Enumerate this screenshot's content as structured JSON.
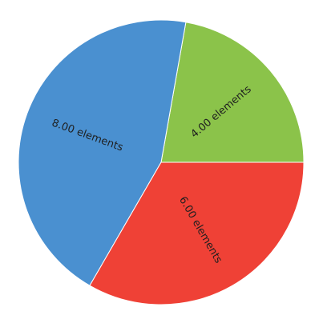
{
  "chart_data": {
    "type": "pie",
    "title": "",
    "slices": [
      {
        "value": 4,
        "label": "4.00 elements",
        "color": "#8bc34a"
      },
      {
        "value": 8,
        "label": "8.00 elements",
        "color": "#4a90d0"
      },
      {
        "value": 6,
        "label": "6.00 elements",
        "color": "#ef4136"
      }
    ],
    "legend": "none"
  }
}
